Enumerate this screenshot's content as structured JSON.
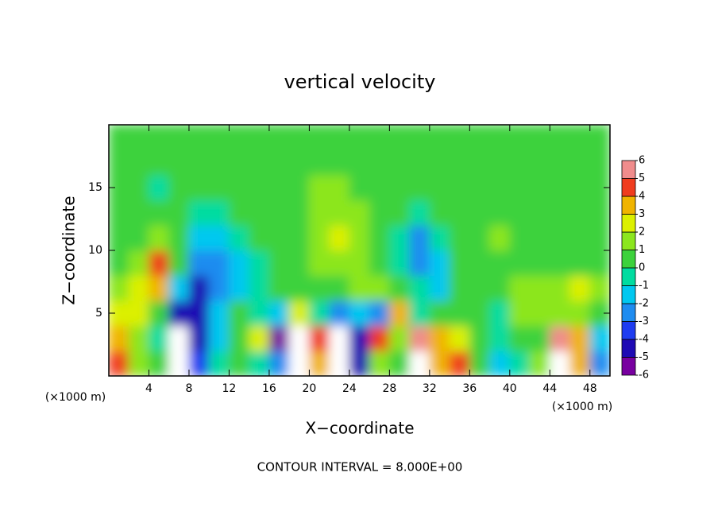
{
  "chart_data": {
    "type": "heatmap",
    "title": "vertical velocity",
    "xlabel": "X−coordinate",
    "ylabel": "Z−coordinate",
    "xunit": "(×1000 m)",
    "xunit_right": "(×1000 m)",
    "footer": "CONTOUR INTERVAL = 8.000E+00",
    "xlim": [
      0,
      50
    ],
    "ylim": [
      0,
      20
    ],
    "xticks": [
      4,
      8,
      12,
      16,
      20,
      24,
      28,
      32,
      36,
      40,
      44,
      48
    ],
    "yticks": [
      5,
      10,
      15
    ],
    "x": [
      1,
      3,
      5,
      7,
      9,
      11,
      13,
      15,
      17,
      19,
      21,
      23,
      25,
      27,
      29,
      31,
      33,
      35,
      37,
      39,
      41,
      43,
      45,
      47,
      49
    ],
    "y": [
      1,
      3,
      5,
      7,
      9,
      11,
      13,
      15,
      17,
      19
    ],
    "z": [
      [
        4,
        1,
        0,
        -8,
        -4,
        -1,
        0,
        -1,
        -3,
        7,
        3,
        -7,
        -5,
        1,
        0,
        7,
        3,
        4,
        0,
        -2,
        -1,
        1,
        7,
        3,
        -3
      ],
      [
        3,
        1,
        -1,
        -8,
        -5,
        -2,
        0,
        2,
        -6,
        7,
        4,
        -7,
        -5,
        4,
        1,
        5,
        3,
        2,
        0,
        -1,
        0,
        0,
        6,
        3,
        -2
      ],
      [
        2,
        2,
        0,
        -5,
        -5,
        -2,
        0,
        -1,
        -2,
        2,
        -1,
        -3,
        -2,
        -3,
        3,
        -1,
        0,
        0,
        0,
        -1,
        1,
        1,
        1,
        1,
        0
      ],
      [
        1,
        2,
        3,
        -2,
        -5,
        -3,
        -2,
        -1,
        0,
        0,
        0,
        0,
        1,
        1,
        0,
        -1,
        -2,
        0,
        0,
        0,
        1,
        1,
        1,
        2,
        1
      ],
      [
        0,
        1,
        4,
        0,
        -3,
        -3,
        -2,
        -1,
        0,
        0,
        1,
        1,
        1,
        0,
        -1,
        -3,
        -2,
        0,
        0,
        0,
        0,
        0,
        0,
        0,
        0
      ],
      [
        0,
        0,
        1,
        0,
        -2,
        -2,
        -1,
        0,
        0,
        0,
        1,
        2,
        1,
        0,
        -1,
        -3,
        -1,
        0,
        0,
        1,
        0,
        0,
        0,
        0,
        0
      ],
      [
        0,
        0,
        0,
        0,
        -1,
        -1,
        0,
        0,
        0,
        0,
        1,
        1,
        1,
        0,
        0,
        -1,
        0,
        0,
        0,
        0,
        0,
        0,
        0,
        0,
        0
      ],
      [
        0,
        0,
        -1,
        0,
        0,
        0,
        0,
        0,
        0,
        0,
        1,
        1,
        0,
        0,
        0,
        0,
        0,
        0,
        0,
        0,
        0,
        0,
        0,
        0,
        0
      ],
      [
        0,
        0,
        0,
        0,
        0,
        0,
        0,
        0,
        0,
        0,
        0,
        0,
        0,
        0,
        0,
        0,
        0,
        0,
        0,
        0,
        0,
        0,
        0,
        0,
        0
      ],
      [
        0,
        0,
        0,
        0,
        0,
        0,
        0,
        0,
        0,
        0,
        0,
        0,
        0,
        0,
        0,
        0,
        0,
        0,
        0,
        0,
        0,
        0,
        0,
        0,
        0
      ]
    ],
    "levels": [
      -6,
      -5,
      -4,
      -3,
      -2,
      -1,
      0,
      1,
      2,
      3,
      4,
      5,
      6
    ],
    "colors": [
      "#7800a0",
      "#1e0ab4",
      "#1e3cf0",
      "#1e8cf0",
      "#00c8f0",
      "#00dca0",
      "#3cd23c",
      "#8ce61e",
      "#dcf000",
      "#f0b400",
      "#f03c1e",
      "#f08c8c"
    ],
    "out_of_range_color": "#ffffff"
  }
}
